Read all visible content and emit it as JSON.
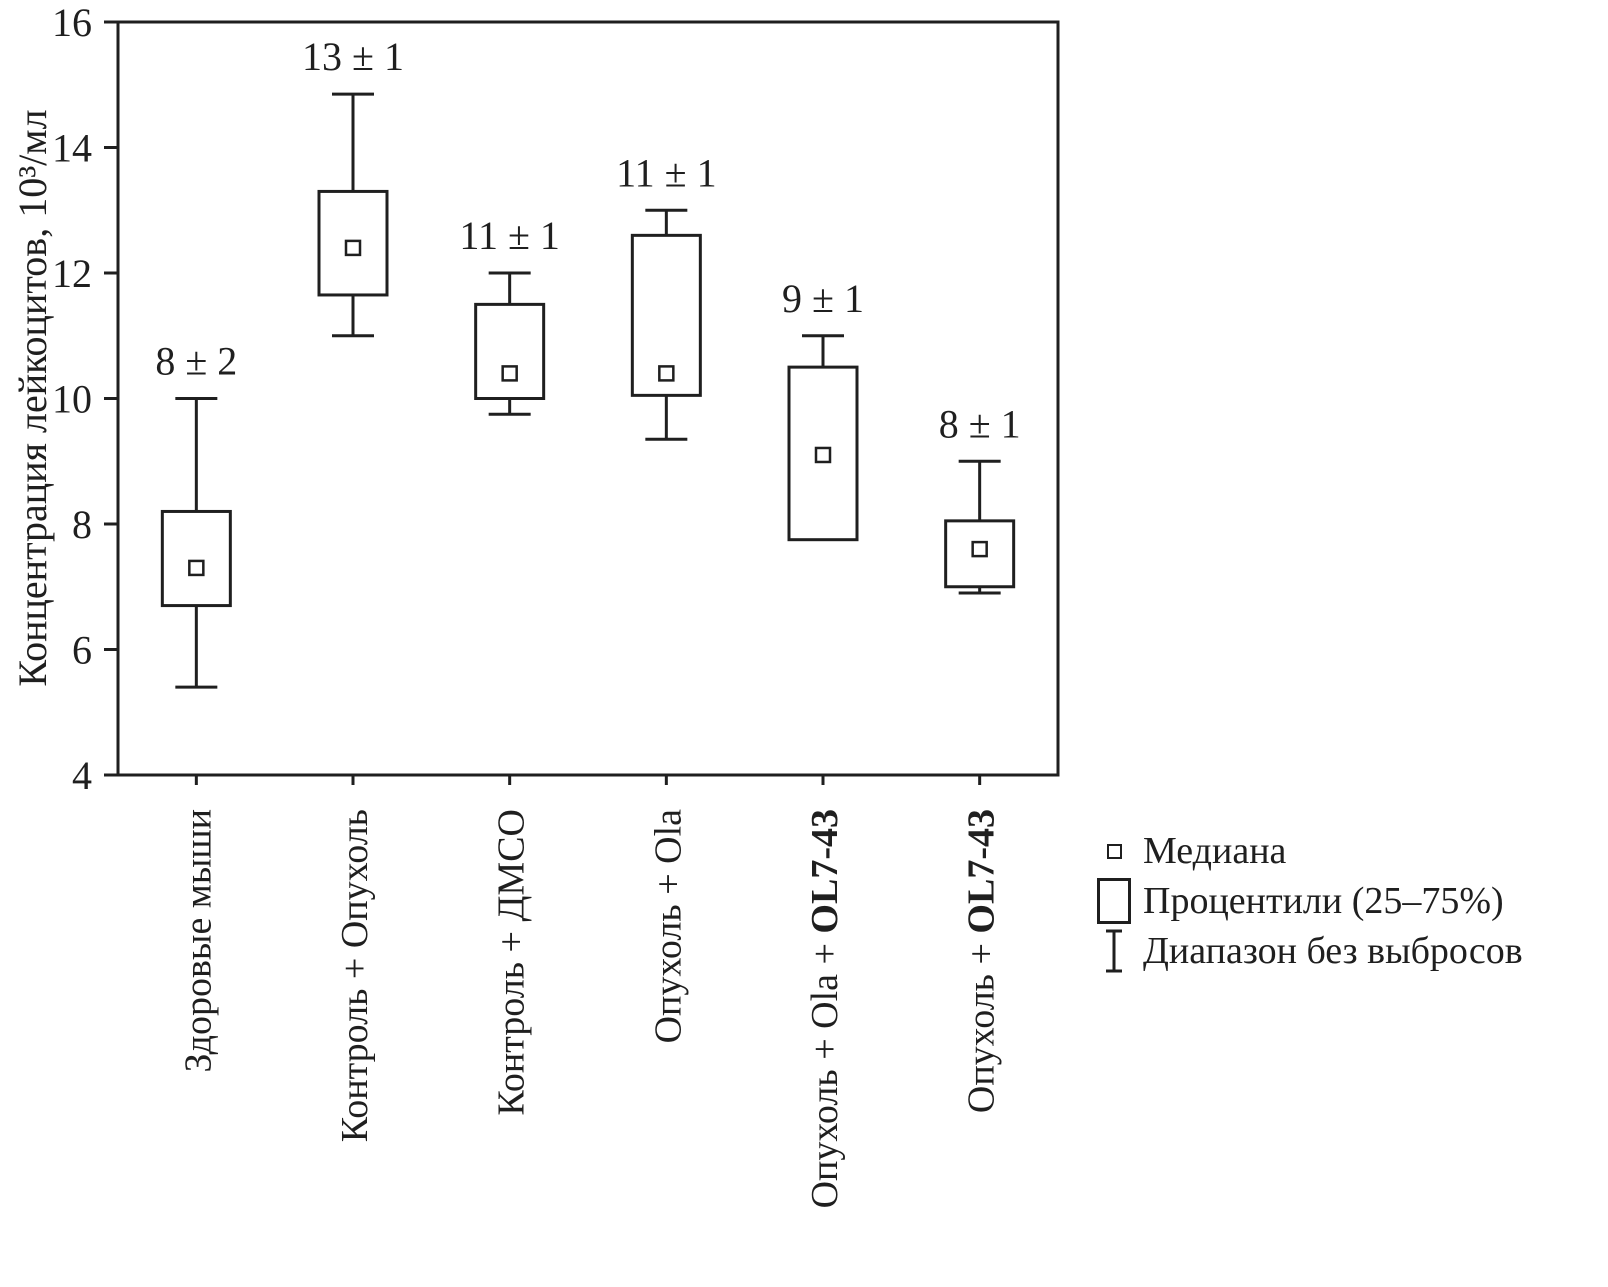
{
  "figure": {
    "background": "#ffffff",
    "ink_color": "#1f1f1f"
  },
  "chart_data": {
    "type": "boxplot",
    "title": "",
    "xlabel": "",
    "ylabel": "Концентрация лейкоцитов, 10³/мл",
    "ylim": [
      4,
      16
    ],
    "yticks": [
      4,
      6,
      8,
      10,
      12,
      14,
      16
    ],
    "grid": false,
    "legend_position": "bottom-right",
    "categories": [
      {
        "label": "Здоровые мыши",
        "label_bold": "",
        "annotation": "8 ± 2",
        "whisker_low": 5.4,
        "q1": 6.7,
        "median": 7.3,
        "q3": 8.2,
        "whisker_high": 10.0
      },
      {
        "label": "Контроль + Опухоль",
        "label_bold": "",
        "annotation": "13 ± 1",
        "whisker_low": 11.0,
        "q1": 11.65,
        "median": 12.4,
        "q3": 13.3,
        "whisker_high": 14.85
      },
      {
        "label": "Контроль + ДМСО",
        "label_bold": "",
        "annotation": "11 ± 1",
        "whisker_low": 9.75,
        "q1": 10.0,
        "median": 10.4,
        "q3": 11.5,
        "whisker_high": 12.0
      },
      {
        "label": "Опухоль + Ola",
        "label_bold": "",
        "annotation": "11 ± 1",
        "whisker_low": 9.35,
        "q1": 10.05,
        "median": 10.4,
        "q3": 12.6,
        "whisker_high": 13.0
      },
      {
        "label": "Опухоль + Ola + ",
        "label_bold": "OL7-43",
        "annotation": "9 ± 1",
        "whisker_low": 7.75,
        "q1": 7.75,
        "median": 9.1,
        "q3": 10.5,
        "whisker_high": 11.0
      },
      {
        "label": "Опухоль + ",
        "label_bold": "OL7-43",
        "annotation": "8 ± 1",
        "whisker_low": 6.9,
        "q1": 7.0,
        "median": 7.6,
        "q3": 8.05,
        "whisker_high": 9.0
      }
    ],
    "legend": [
      {
        "icon": "median-square",
        "label": "Медиана"
      },
      {
        "icon": "percentile-box",
        "label": "Процентили (25–75%)"
      },
      {
        "icon": "whisker-range",
        "label": "Диапазон без выбросов"
      }
    ]
  }
}
